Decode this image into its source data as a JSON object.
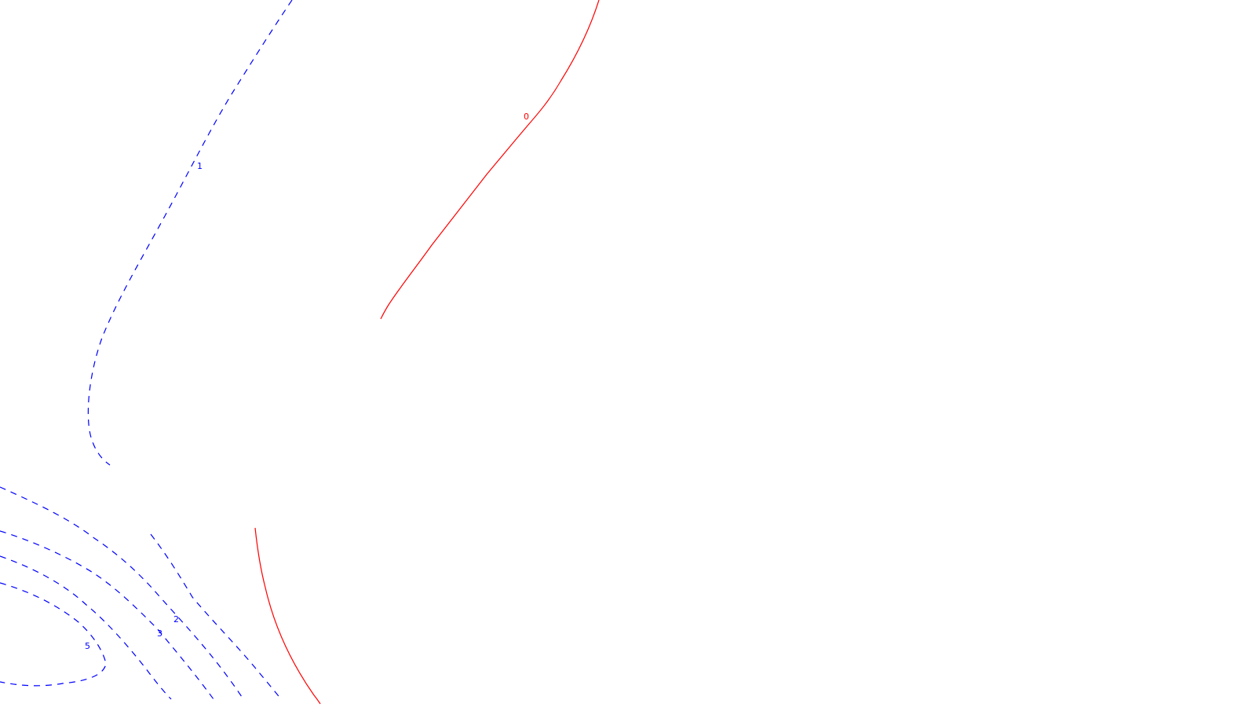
{
  "map": {
    "line_colors": {
      "positive": "#0000ff",
      "zero": "#ff0000"
    },
    "contours": [
      {
        "id": "contour-1",
        "value": "1",
        "style": "dashed",
        "color_key": "positive"
      },
      {
        "id": "contour-2",
        "value": "2",
        "style": "dashed",
        "color_key": "positive"
      },
      {
        "id": "contour-3",
        "value": "3",
        "style": "dashed",
        "color_key": "positive"
      },
      {
        "id": "contour-4",
        "value": "",
        "style": "dashed",
        "color_key": "positive"
      },
      {
        "id": "contour-5",
        "value": "5",
        "style": "dashed",
        "color_key": "positive"
      },
      {
        "id": "contour-0",
        "value": "0",
        "style": "solid",
        "color_key": "zero"
      }
    ]
  }
}
